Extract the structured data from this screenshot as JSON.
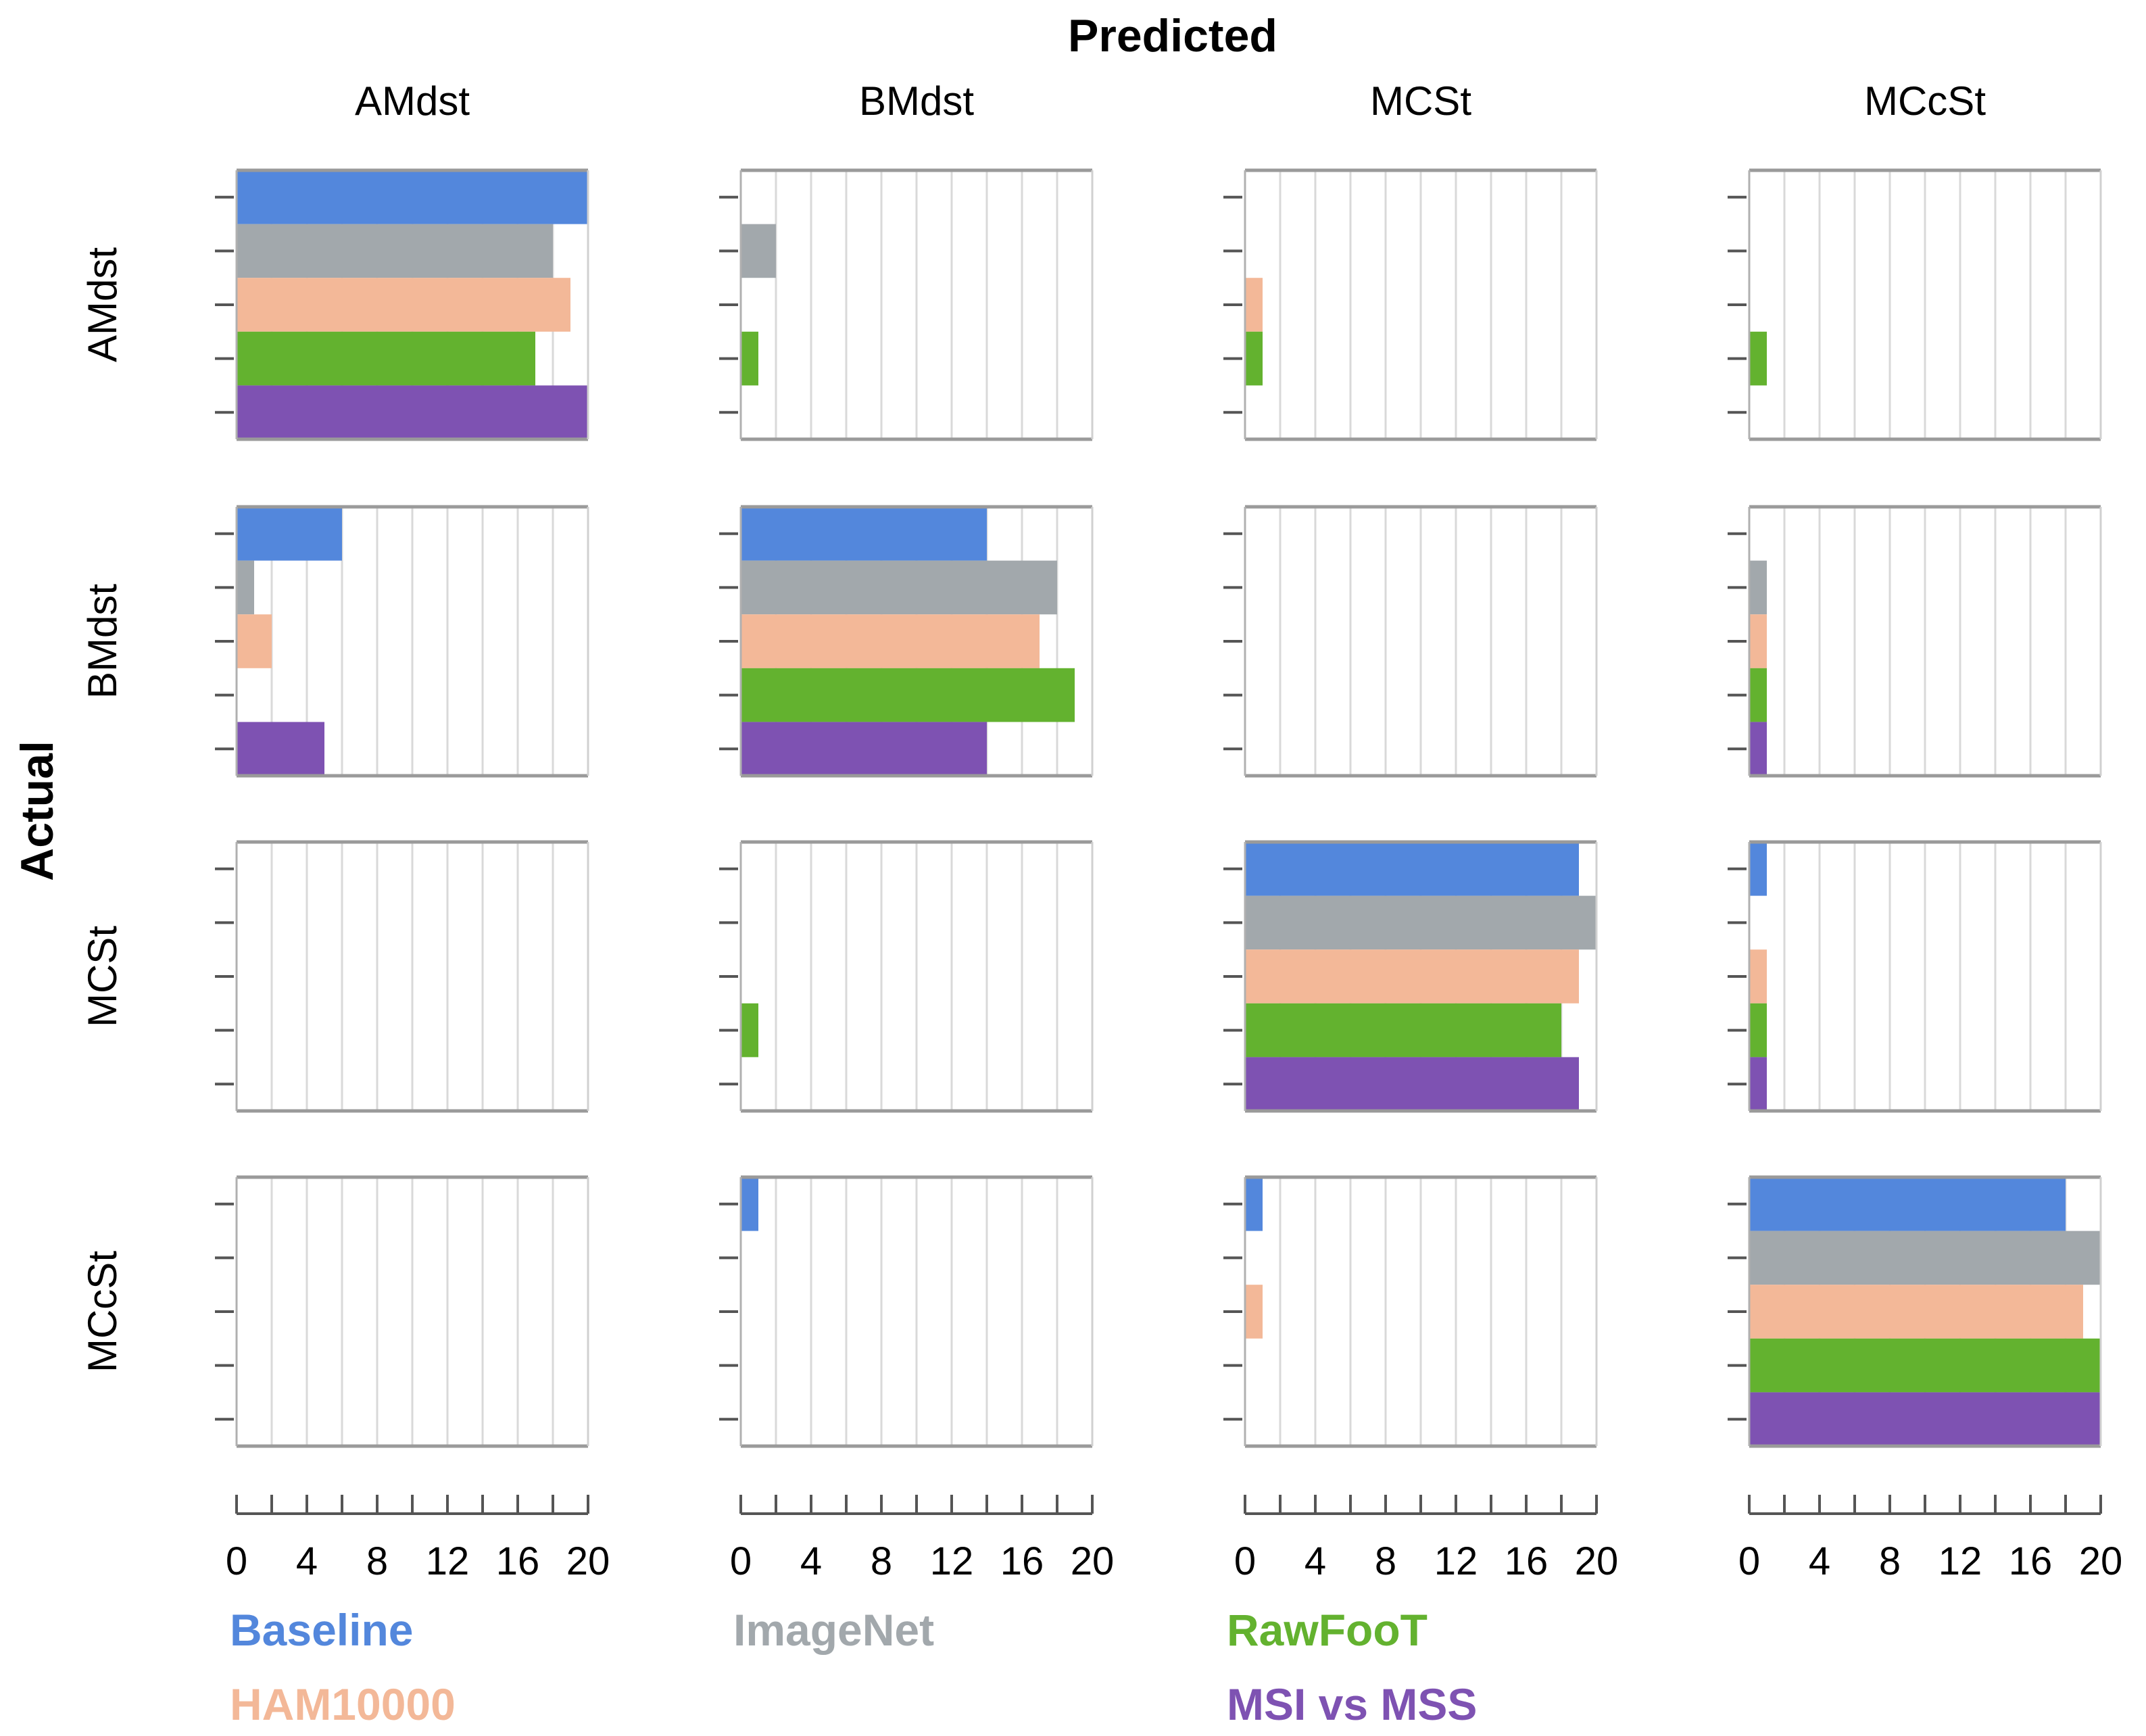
{
  "chart_data": {
    "type": "bar",
    "orientation": "horizontal",
    "layout": "faceted confusion matrix (4 x 4)",
    "x_title": "Predicted",
    "y_title": "Actual",
    "categories": [
      "AMdst",
      "BMdst",
      "MCSt",
      "MCcSt"
    ],
    "xlim": [
      0,
      20
    ],
    "xticks": [
      0,
      4,
      8,
      12,
      16,
      20
    ],
    "minor_gridlines_every": 2,
    "series": [
      {
        "name": "Baseline",
        "color": "#5387dc",
        "values": [
          [
            20,
            0,
            0,
            0
          ],
          [
            6,
            14,
            0,
            0
          ],
          [
            0,
            0,
            19,
            1
          ],
          [
            0,
            1,
            1,
            18
          ]
        ]
      },
      {
        "name": "ImageNet",
        "color": "#a2a8ac",
        "values": [
          [
            18,
            2,
            0,
            0
          ],
          [
            1,
            18,
            0,
            1
          ],
          [
            0,
            0,
            20,
            0
          ],
          [
            0,
            0,
            0,
            20
          ]
        ]
      },
      {
        "name": "HAM10000",
        "color": "#f3b898",
        "values": [
          [
            19,
            0,
            1,
            0
          ],
          [
            2,
            17,
            0,
            1
          ],
          [
            0,
            0,
            19,
            1
          ],
          [
            0,
            0,
            1,
            19
          ]
        ]
      },
      {
        "name": "RawFooT",
        "color": "#63b22f",
        "values": [
          [
            17,
            1,
            1,
            1
          ],
          [
            0,
            19,
            0,
            1
          ],
          [
            0,
            1,
            18,
            1
          ],
          [
            0,
            0,
            0,
            20
          ]
        ]
      },
      {
        "name": "MSI vs MSS",
        "color": "#7e52b2",
        "values": [
          [
            20,
            0,
            0,
            0
          ],
          [
            5,
            14,
            0,
            1
          ],
          [
            0,
            0,
            19,
            1
          ],
          [
            0,
            0,
            0,
            20
          ]
        ]
      }
    ],
    "legend": {
      "placement": "bottom",
      "rows": [
        [
          "Baseline",
          "ImageNet",
          "RawFooT"
        ],
        [
          "HAM10000",
          "MSI vs MSS"
        ]
      ]
    },
    "grid": true
  }
}
